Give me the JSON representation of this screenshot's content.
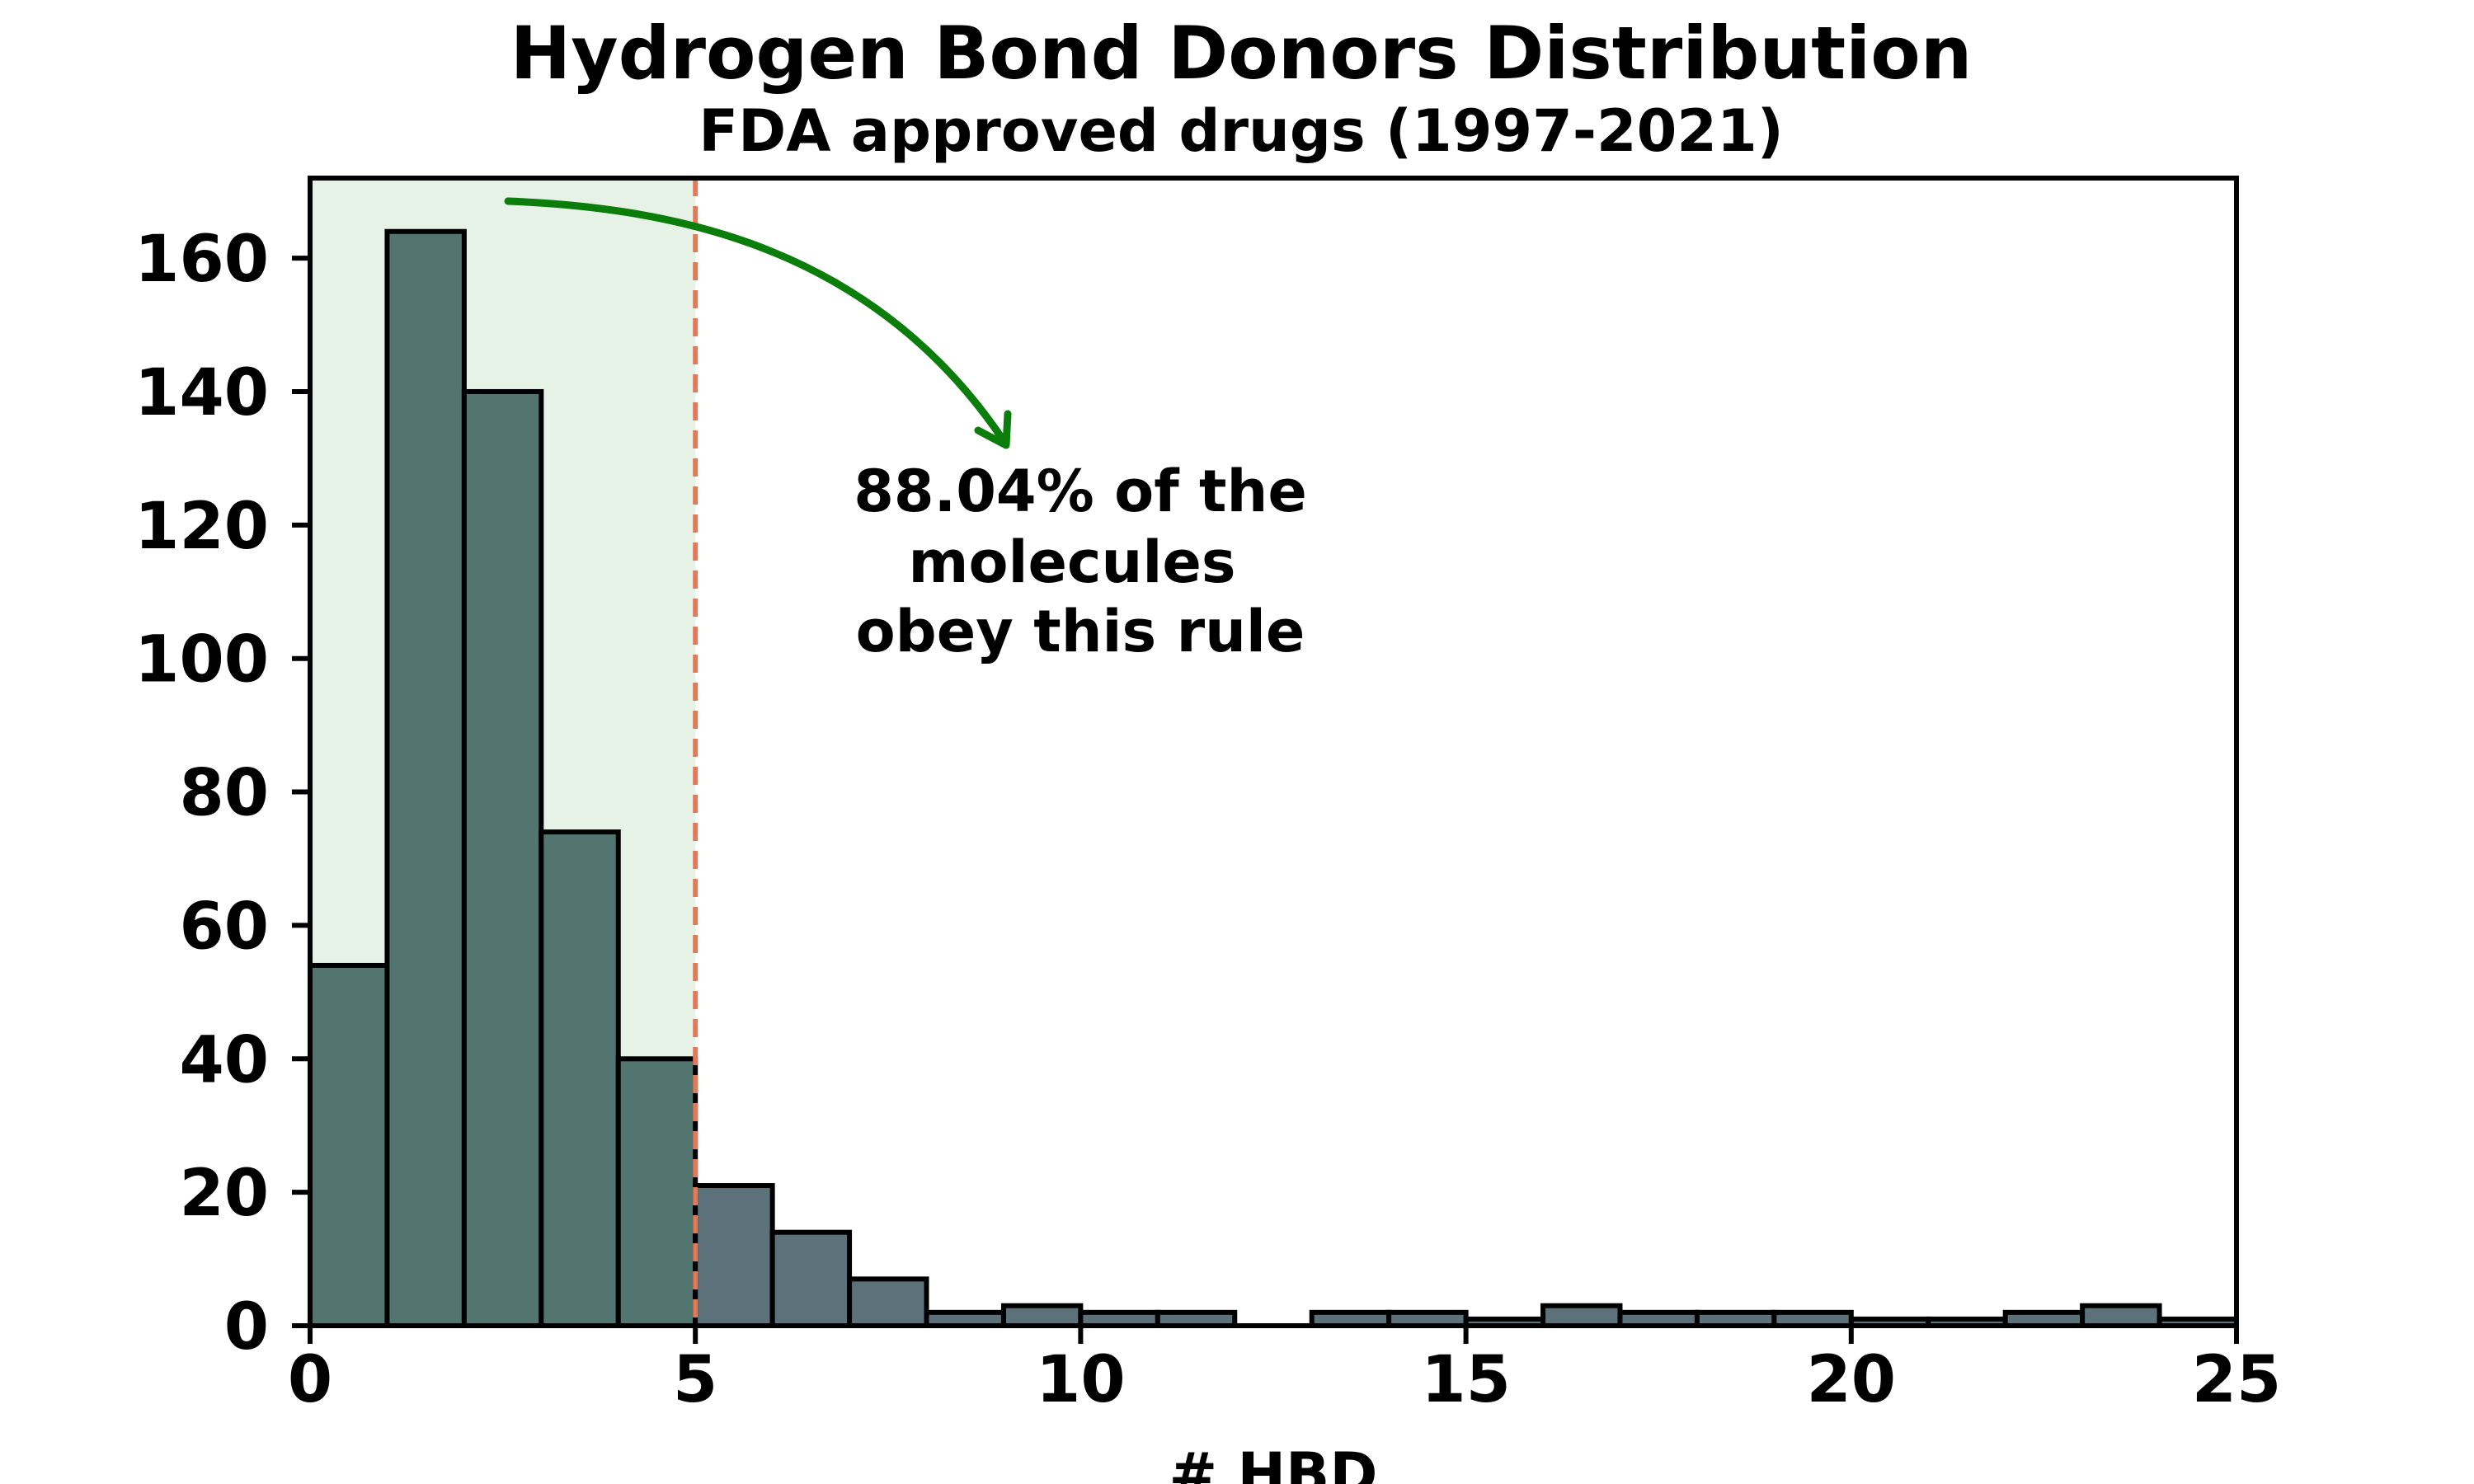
{
  "chart_data": {
    "type": "bar",
    "title": "Hydrogen Bond Donors Distribution",
    "subtitle": "FDA approved drugs (1997-2021)",
    "xlabel": "# HBD",
    "ylabel": "",
    "xlim": [
      0,
      25
    ],
    "ylim": [
      0,
      172
    ],
    "xticks": [
      "0",
      "5",
      "10",
      "15",
      "20",
      "25"
    ],
    "yticks": [
      "0",
      "20",
      "40",
      "60",
      "80",
      "100",
      "120",
      "140",
      "160"
    ],
    "bin_width": 1,
    "bin_starts": [
      0,
      1,
      2,
      3,
      4,
      5,
      6,
      7,
      8,
      9,
      10,
      11,
      12,
      13,
      14,
      15,
      16,
      17,
      18,
      19,
      20,
      21,
      22,
      23,
      24
    ],
    "values": [
      54,
      164,
      140,
      74,
      40,
      21,
      14,
      7,
      2,
      3,
      2,
      2,
      0,
      2,
      2,
      1,
      3,
      2,
      2,
      2,
      1,
      1,
      2,
      3,
      1
    ],
    "threshold": 5,
    "annotation": [
      "88.04% of the",
      "molecules",
      "obey this rule"
    ],
    "grid": false,
    "legend": "none",
    "colors": {
      "bar_within_rule": "#52756f",
      "bar_outside_rule": "#5d717b",
      "bar_edge": "#000000",
      "rule_region": "#e6f2e6",
      "threshold_line": "#e07b5a",
      "arrow": "#0a7d0a"
    }
  }
}
